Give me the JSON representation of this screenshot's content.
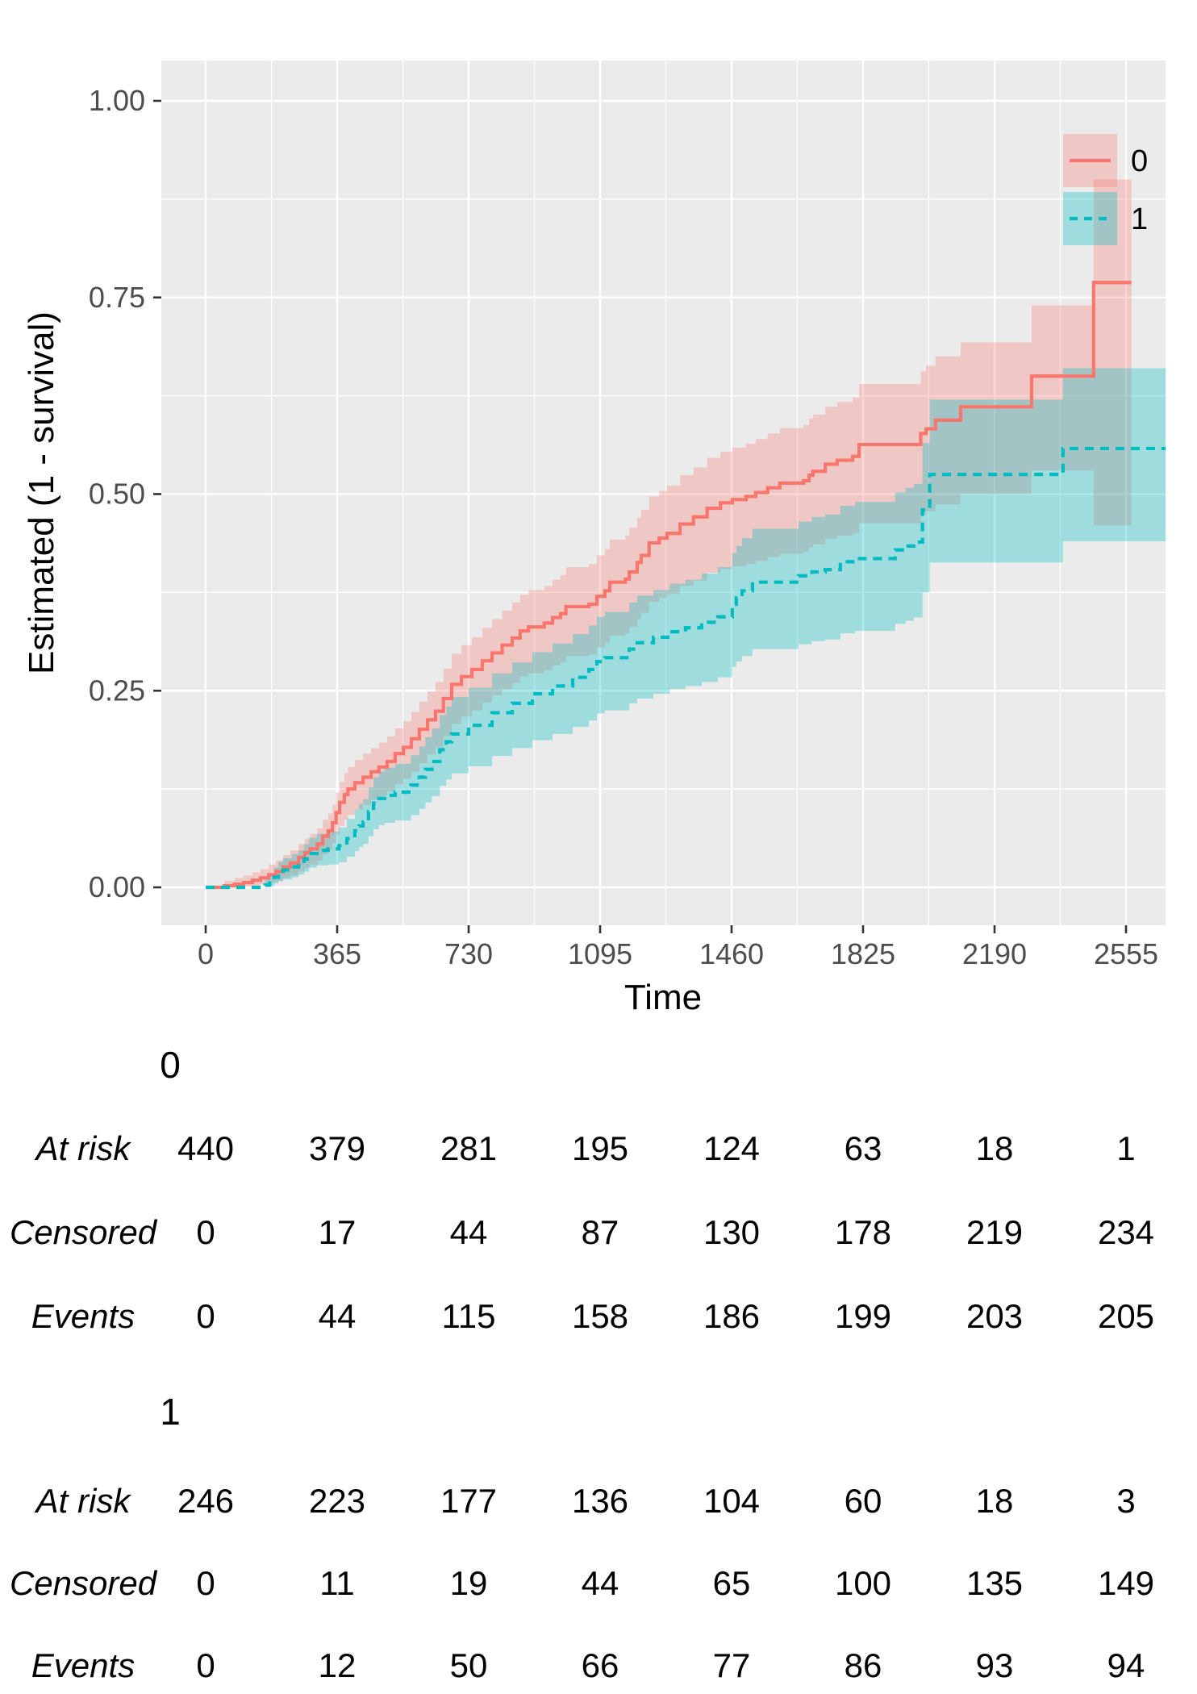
{
  "chart_data": {
    "type": "line",
    "subtype": "kaplan-meier-step-with-ci",
    "x_axis": {
      "label": "Time",
      "ticks": [
        0,
        365,
        730,
        1095,
        1460,
        1825,
        2190,
        2555
      ],
      "minor_ticks": [
        182.5,
        547.5,
        912.5,
        1277.5,
        1642.5,
        2007.5,
        2372.5
      ],
      "range": [
        0,
        2665
      ]
    },
    "y_axis": {
      "label": "Estimated (1 - survival)",
      "ticks": [
        0,
        0.25,
        0.5,
        0.75,
        1.0
      ],
      "tick_labels": [
        "0.00",
        "0.25",
        "0.50",
        "0.75",
        "1.00"
      ],
      "minor_ticks": [
        0.125,
        0.375,
        0.625,
        0.875
      ],
      "range": [
        0,
        1
      ]
    },
    "grid": "on",
    "legend": {
      "position": "inside-top-right",
      "entries": [
        {
          "label": "0",
          "color": "#F8766D",
          "dash": "solid"
        },
        {
          "label": "1",
          "color": "#00BCC1",
          "dash": "dashed"
        }
      ]
    },
    "colors": {
      "panel": "#EBEBEB",
      "grid": "#FFFFFF",
      "tick_text": "#4D4D4D",
      "tick_mark": "#333333",
      "group0_line": "#F8766D",
      "group0_fill": "rgba(248,118,109,0.30)",
      "group1_line": "#00BCC1",
      "group1_fill": "rgba(0,191,196,0.32)"
    },
    "series": [
      {
        "name": "0",
        "color": "#F8766D",
        "dash": null,
        "points": [
          [
            0,
            0,
            0,
            0
          ],
          [
            52,
            0.002,
            0,
            0.008
          ],
          [
            80,
            0.004,
            0.001,
            0.012
          ],
          [
            105,
            0.006,
            0.001,
            0.015
          ],
          [
            130,
            0.009,
            0.002,
            0.019
          ],
          [
            152,
            0.012,
            0.004,
            0.023
          ],
          [
            175,
            0.016,
            0.006,
            0.029
          ],
          [
            195,
            0.02,
            0.008,
            0.034
          ],
          [
            215,
            0.026,
            0.012,
            0.041
          ],
          [
            235,
            0.031,
            0.015,
            0.047
          ],
          [
            258,
            0.038,
            0.02,
            0.055
          ],
          [
            275,
            0.044,
            0.025,
            0.062
          ],
          [
            290,
            0.049,
            0.029,
            0.068
          ],
          [
            310,
            0.055,
            0.034,
            0.075
          ],
          [
            325,
            0.065,
            0.042,
            0.086
          ],
          [
            340,
            0.072,
            0.048,
            0.094
          ],
          [
            352,
            0.082,
            0.056,
            0.105
          ],
          [
            362,
            0.095,
            0.067,
            0.12
          ],
          [
            372,
            0.108,
            0.078,
            0.134
          ],
          [
            385,
            0.118,
            0.086,
            0.145
          ],
          [
            395,
            0.125,
            0.092,
            0.153
          ],
          [
            414,
            0.133,
            0.099,
            0.162
          ],
          [
            437,
            0.14,
            0.105,
            0.17
          ],
          [
            459,
            0.147,
            0.111,
            0.177
          ],
          [
            481,
            0.153,
            0.116,
            0.184
          ],
          [
            504,
            0.16,
            0.122,
            0.192
          ],
          [
            526,
            0.17,
            0.131,
            0.202
          ],
          [
            549,
            0.178,
            0.138,
            0.211
          ],
          [
            571,
            0.189,
            0.147,
            0.223
          ],
          [
            593,
            0.201,
            0.158,
            0.236
          ],
          [
            616,
            0.213,
            0.169,
            0.249
          ],
          [
            638,
            0.224,
            0.178,
            0.261
          ],
          [
            660,
            0.24,
            0.192,
            0.278
          ],
          [
            683,
            0.258,
            0.208,
            0.297
          ],
          [
            710,
            0.268,
            0.217,
            0.308
          ],
          [
            739,
            0.277,
            0.225,
            0.318
          ],
          [
            768,
            0.288,
            0.235,
            0.33
          ],
          [
            795,
            0.298,
            0.244,
            0.341
          ],
          [
            823,
            0.308,
            0.252,
            0.352
          ],
          [
            851,
            0.317,
            0.26,
            0.362
          ],
          [
            873,
            0.326,
            0.268,
            0.372
          ],
          [
            896,
            0.331,
            0.272,
            0.378
          ],
          [
            940,
            0.336,
            0.276,
            0.383
          ],
          [
            963,
            0.343,
            0.282,
            0.391
          ],
          [
            985,
            0.348,
            0.286,
            0.397
          ],
          [
            1000,
            0.357,
            0.294,
            0.407
          ],
          [
            1064,
            0.36,
            0.296,
            0.411
          ],
          [
            1086,
            0.37,
            0.305,
            0.422
          ],
          [
            1108,
            0.377,
            0.311,
            0.43
          ],
          [
            1122,
            0.388,
            0.32,
            0.442
          ],
          [
            1165,
            0.392,
            0.323,
            0.447
          ],
          [
            1176,
            0.401,
            0.331,
            0.457
          ],
          [
            1198,
            0.413,
            0.341,
            0.47
          ],
          [
            1209,
            0.422,
            0.349,
            0.48
          ],
          [
            1231,
            0.438,
            0.363,
            0.497
          ],
          [
            1259,
            0.444,
            0.368,
            0.504
          ],
          [
            1281,
            0.45,
            0.373,
            0.511
          ],
          [
            1317,
            0.462,
            0.383,
            0.524
          ],
          [
            1354,
            0.471,
            0.39,
            0.534
          ],
          [
            1392,
            0.482,
            0.4,
            0.546
          ],
          [
            1429,
            0.489,
            0.405,
            0.554
          ],
          [
            1462,
            0.493,
            0.408,
            0.559
          ],
          [
            1500,
            0.497,
            0.411,
            0.564
          ],
          [
            1527,
            0.502,
            0.415,
            0.57
          ],
          [
            1560,
            0.508,
            0.42,
            0.577
          ],
          [
            1594,
            0.514,
            0.424,
            0.584
          ],
          [
            1660,
            0.517,
            0.426,
            0.588
          ],
          [
            1675,
            0.524,
            0.432,
            0.596
          ],
          [
            1686,
            0.529,
            0.436,
            0.601
          ],
          [
            1720,
            0.538,
            0.443,
            0.611
          ],
          [
            1753,
            0.543,
            0.447,
            0.617
          ],
          [
            1796,
            0.548,
            0.45,
            0.623
          ],
          [
            1814,
            0.563,
            0.463,
            0.64
          ],
          [
            1985,
            0.577,
            0.474,
            0.656
          ],
          [
            2000,
            0.583,
            0.478,
            0.663
          ],
          [
            2026,
            0.594,
            0.487,
            0.675
          ],
          [
            2096,
            0.611,
            0.5,
            0.693
          ],
          [
            2293,
            0.65,
            0.53,
            0.74
          ],
          [
            2465,
            0.769,
            0.46,
            0.9
          ],
          [
            2570,
            0.769,
            0.46,
            0.9
          ]
        ]
      },
      {
        "name": "1",
        "color": "#00BCC1",
        "dash": "11 8",
        "points": [
          [
            0,
            0,
            0,
            0
          ],
          [
            165,
            0.003,
            0,
            0.01
          ],
          [
            178,
            0.008,
            0.002,
            0.018
          ],
          [
            190,
            0.013,
            0.005,
            0.025
          ],
          [
            202,
            0.018,
            0.008,
            0.032
          ],
          [
            215,
            0.022,
            0.01,
            0.037
          ],
          [
            240,
            0.026,
            0.013,
            0.042
          ],
          [
            258,
            0.03,
            0.016,
            0.047
          ],
          [
            273,
            0.036,
            0.02,
            0.055
          ],
          [
            287,
            0.043,
            0.025,
            0.063
          ],
          [
            309,
            0.047,
            0.028,
            0.068
          ],
          [
            340,
            0.049,
            0.029,
            0.071
          ],
          [
            370,
            0.053,
            0.032,
            0.076
          ],
          [
            392,
            0.062,
            0.039,
            0.087
          ],
          [
            414,
            0.072,
            0.046,
            0.099
          ],
          [
            426,
            0.078,
            0.051,
            0.106
          ],
          [
            437,
            0.083,
            0.055,
            0.112
          ],
          [
            452,
            0.096,
            0.065,
            0.127
          ],
          [
            466,
            0.107,
            0.074,
            0.14
          ],
          [
            481,
            0.113,
            0.079,
            0.147
          ],
          [
            497,
            0.117,
            0.082,
            0.152
          ],
          [
            526,
            0.121,
            0.085,
            0.157
          ],
          [
            570,
            0.13,
            0.092,
            0.168
          ],
          [
            593,
            0.14,
            0.1,
            0.179
          ],
          [
            610,
            0.15,
            0.108,
            0.191
          ],
          [
            628,
            0.16,
            0.116,
            0.202
          ],
          [
            650,
            0.175,
            0.129,
            0.219
          ],
          [
            668,
            0.185,
            0.137,
            0.23
          ],
          [
            683,
            0.195,
            0.145,
            0.242
          ],
          [
            730,
            0.206,
            0.154,
            0.254
          ],
          [
            795,
            0.222,
            0.167,
            0.272
          ],
          [
            851,
            0.234,
            0.177,
            0.286
          ],
          [
            907,
            0.246,
            0.187,
            0.299
          ],
          [
            963,
            0.256,
            0.195,
            0.31
          ],
          [
            1019,
            0.267,
            0.204,
            0.322
          ],
          [
            1064,
            0.277,
            0.212,
            0.333
          ],
          [
            1086,
            0.287,
            0.221,
            0.344
          ],
          [
            1108,
            0.292,
            0.225,
            0.35
          ],
          [
            1176,
            0.303,
            0.234,
            0.362
          ],
          [
            1198,
            0.311,
            0.24,
            0.371
          ],
          [
            1243,
            0.318,
            0.246,
            0.378
          ],
          [
            1288,
            0.325,
            0.252,
            0.386
          ],
          [
            1332,
            0.33,
            0.256,
            0.391
          ],
          [
            1377,
            0.337,
            0.261,
            0.399
          ],
          [
            1422,
            0.344,
            0.267,
            0.407
          ],
          [
            1462,
            0.36,
            0.28,
            0.425
          ],
          [
            1473,
            0.368,
            0.287,
            0.434
          ],
          [
            1489,
            0.377,
            0.294,
            0.444
          ],
          [
            1518,
            0.388,
            0.303,
            0.456
          ],
          [
            1646,
            0.396,
            0.309,
            0.465
          ],
          [
            1683,
            0.401,
            0.313,
            0.471
          ],
          [
            1720,
            0.404,
            0.315,
            0.474
          ],
          [
            1762,
            0.414,
            0.323,
            0.485
          ],
          [
            1803,
            0.418,
            0.326,
            0.49
          ],
          [
            1914,
            0.429,
            0.335,
            0.502
          ],
          [
            1943,
            0.434,
            0.339,
            0.508
          ],
          [
            1966,
            0.439,
            0.343,
            0.513
          ],
          [
            1990,
            0.48,
            0.375,
            0.565
          ],
          [
            2010,
            0.525,
            0.413,
            0.62
          ],
          [
            2380,
            0.558,
            0.44,
            0.66
          ],
          [
            2665,
            0.558,
            0.44,
            0.66
          ]
        ]
      }
    ],
    "risk_tables": [
      {
        "group": "0",
        "rows": [
          {
            "label": "At risk",
            "values": [
              "440",
              "379",
              "281",
              "195",
              "124",
              "63",
              "18",
              "1"
            ]
          },
          {
            "label": "Censored",
            "values": [
              "0",
              "17",
              "44",
              "87",
              "130",
              "178",
              "219",
              "234"
            ]
          },
          {
            "label": "Events",
            "values": [
              "0",
              "44",
              "115",
              "158",
              "186",
              "199",
              "203",
              "205"
            ]
          }
        ]
      },
      {
        "group": "1",
        "rows": [
          {
            "label": "At risk",
            "values": [
              "246",
              "223",
              "177",
              "136",
              "104",
              "60",
              "18",
              "3"
            ]
          },
          {
            "label": "Censored",
            "values": [
              "0",
              "11",
              "19",
              "44",
              "65",
              "100",
              "135",
              "149"
            ]
          },
          {
            "label": "Events",
            "values": [
              "0",
              "12",
              "50",
              "66",
              "77",
              "86",
              "93",
              "94"
            ]
          }
        ]
      }
    ]
  }
}
